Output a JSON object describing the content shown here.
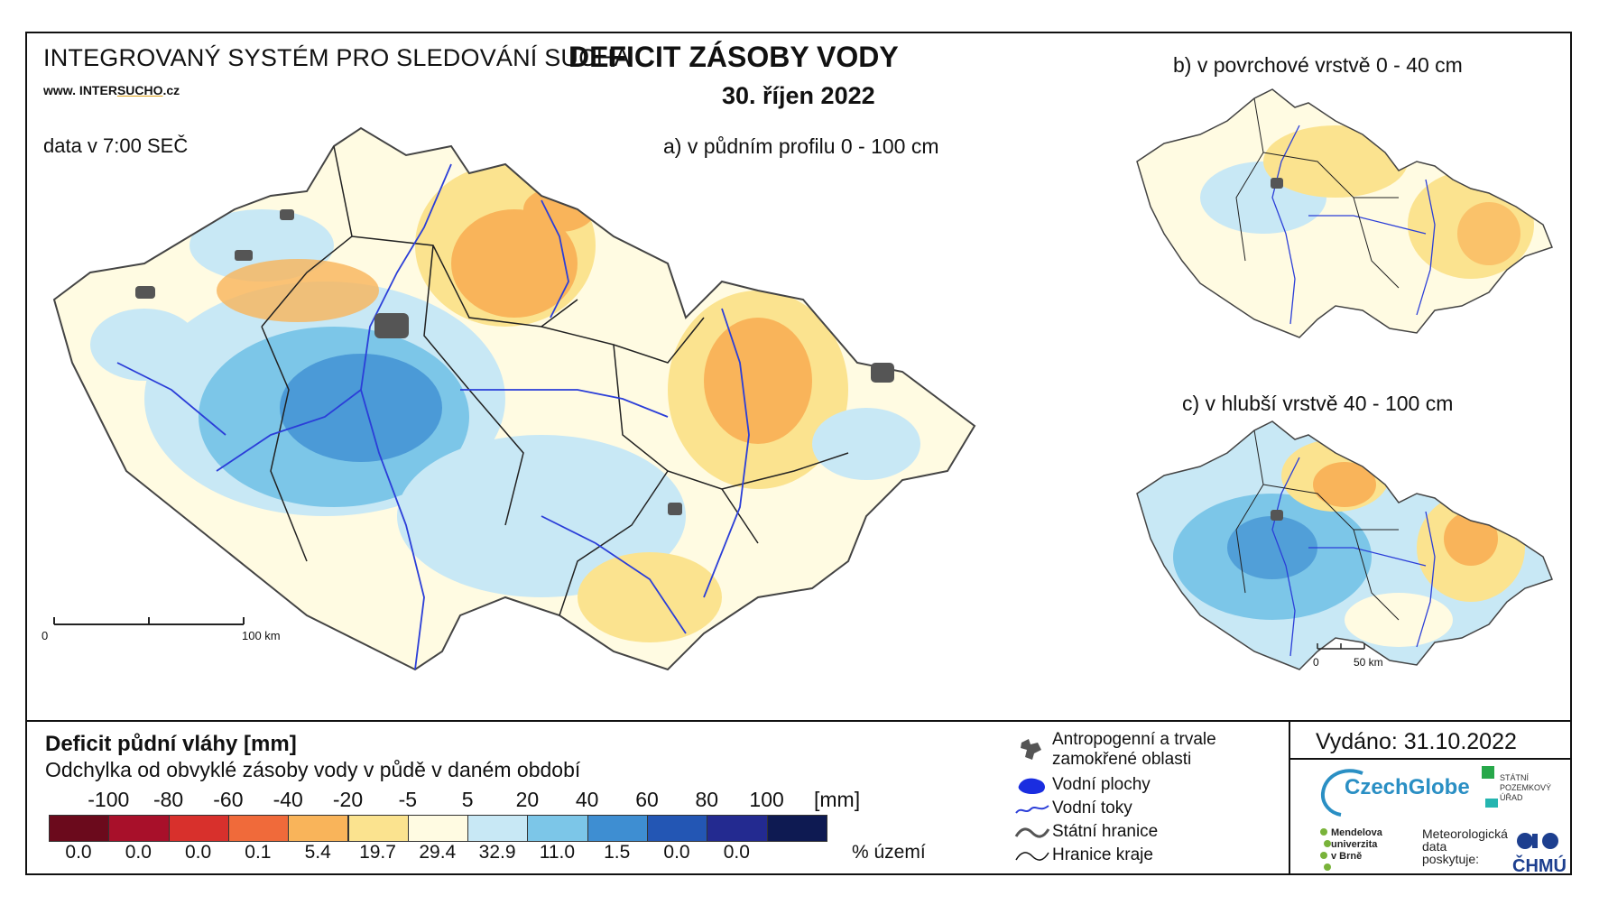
{
  "header": {
    "system_title": "INTEGROVANÝ SYSTÉM PRO SLEDOVÁNÍ SUCHA",
    "url_prefix": "www. INTER",
    "url_highlight": "SUCHO",
    "url_suffix": ".cz",
    "data_time": "data v 7:00 SEČ",
    "main_title": "DEFICIT ZÁSOBY VODY",
    "main_date": "30. říjen 2022"
  },
  "maps": {
    "a_label": "a) v půdním profilu 0 - 100 cm",
    "b_label": "b) v povrchové vrstvě 0 - 40 cm",
    "c_label": "c) v hlubší vrstvě 40 - 100 cm",
    "scale_main": {
      "start": "0",
      "end": "100 km"
    },
    "scale_small": {
      "start": "0",
      "end": "50 km"
    }
  },
  "legend": {
    "title": "Deficit půdní vláhy  [mm]",
    "subtitle": "Odchylka od obvyklé zásoby vody v půdě v daném období",
    "ticks": [
      "-100",
      "-80",
      "-60",
      "-40",
      "-20",
      "-5",
      "5",
      "20",
      "40",
      "60",
      "80",
      "100"
    ],
    "unit": "[mm]",
    "colors": [
      "#6b0a1c",
      "#a8102a",
      "#d8302c",
      "#f06a3a",
      "#f9b45a",
      "#fbe38f",
      "#fffbe2",
      "#c8e8f5",
      "#7cc6e8",
      "#3e8ed2",
      "#2356b4",
      "#232a90",
      "#0e1a52"
    ],
    "percentages": [
      "0.0",
      "0.0",
      "0.0",
      "0.1",
      "5.4",
      "19.7",
      "29.4",
      "32.9",
      "11.0",
      "1.5",
      "0.0",
      "0.0"
    ],
    "percent_unit": "% území"
  },
  "symbols": {
    "anthropogenic_1": "Antropogenní a trvale",
    "anthropogenic_2": "zamokřené oblasti",
    "water_bodies": "Vodní plochy",
    "rivers": "Vodní toky",
    "state_border": "Státní hranice",
    "region_border": "Hranice kraje"
  },
  "footer": {
    "issued": "Vydáno: 31.10.2022",
    "logo_czechglobe": "CzechGlobe",
    "logo_spu_1": "STÁTNÍ",
    "logo_spu_2": "POZEMKOVÝ",
    "logo_spu_3": "ÚŘAD",
    "logo_mendel_1": "Mendelova",
    "logo_mendel_2": "univerzita",
    "logo_mendel_3": "v Brně",
    "meteo_1": "Meteorologická",
    "meteo_2": "data",
    "meteo_3": "poskytuje:",
    "logo_chmu": "ČHMÚ"
  }
}
